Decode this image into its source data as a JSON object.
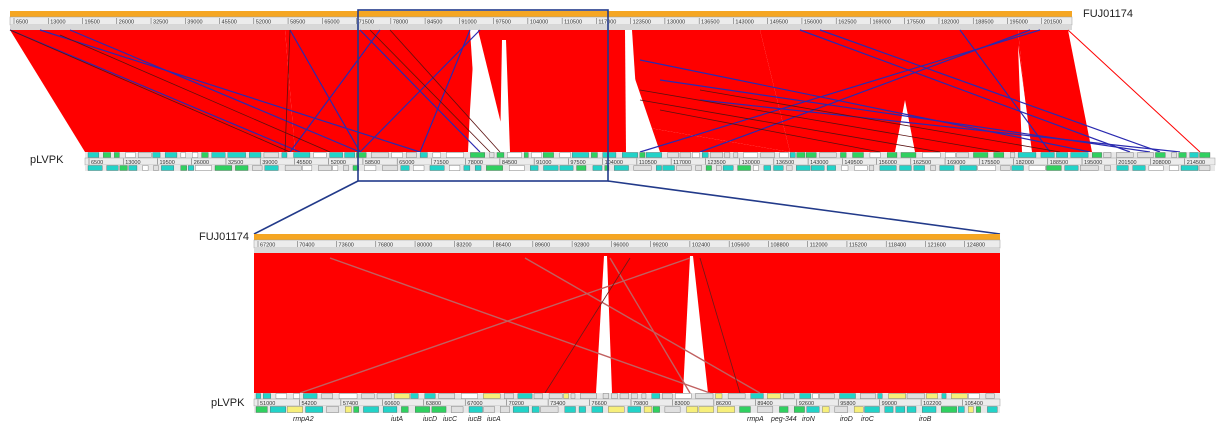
{
  "labels": {
    "top_genome": "FUJ01174",
    "bottom_genome": "pLVPK",
    "zoom_top_genome": "FUJ01174",
    "zoom_bottom_genome": "pLVPK"
  },
  "genes": [
    "rmpA2",
    "iutA",
    "iucD",
    "iucC",
    "iucB",
    "iucA",
    "rmpA",
    "peg-344",
    "iroN",
    "iroD",
    "iroC",
    "iroB"
  ],
  "colors": {
    "match": "#ff0000",
    "inverted": "#2a2ab0",
    "contig_bar": "#f5a623",
    "ruler": "#ececec",
    "feature": "#22d3c8",
    "feature_green": "#30d060",
    "feature_yellow": "#f7ef7a",
    "zoom_box": "#223a8a"
  },
  "top_ruler_ticks": [
    "6500",
    "13000",
    "19500",
    "26000",
    "32500",
    "39000",
    "45500",
    "52000",
    "58500",
    "65000",
    "71500",
    "78000",
    "84500",
    "91000",
    "97500",
    "104000",
    "110500",
    "117000",
    "123500",
    "130000",
    "136500",
    "143000",
    "149500",
    "156000",
    "162500",
    "169000",
    "175500",
    "182000",
    "188500",
    "195000",
    "201500"
  ],
  "bottom_ruler_ticks": [
    "6500",
    "13000",
    "19500",
    "26000",
    "32500",
    "39000",
    "45500",
    "52000",
    "58500",
    "65000",
    "71500",
    "78000",
    "84500",
    "91000",
    "97500",
    "104000",
    "110500",
    "117000",
    "123500",
    "130000",
    "136500",
    "143000",
    "149500",
    "156000",
    "162500",
    "169000",
    "175500",
    "182000",
    "188500",
    "195000",
    "201500",
    "208000",
    "214500"
  ],
  "zoom_top_ticks": [
    "67200",
    "70400",
    "73600",
    "76800",
    "80000",
    "83200",
    "86400",
    "89600",
    "92800",
    "96000",
    "99200",
    "102400",
    "105600",
    "108800",
    "112000",
    "115200",
    "118400",
    "121600",
    "124800"
  ],
  "zoom_bottom_ticks": [
    "51000",
    "54200",
    "57400",
    "60600",
    "63800",
    "67000",
    "70200",
    "73400",
    "76600",
    "79800",
    "83000",
    "86200",
    "89400",
    "92600",
    "95800",
    "99000",
    "102200",
    "105400"
  ]
}
